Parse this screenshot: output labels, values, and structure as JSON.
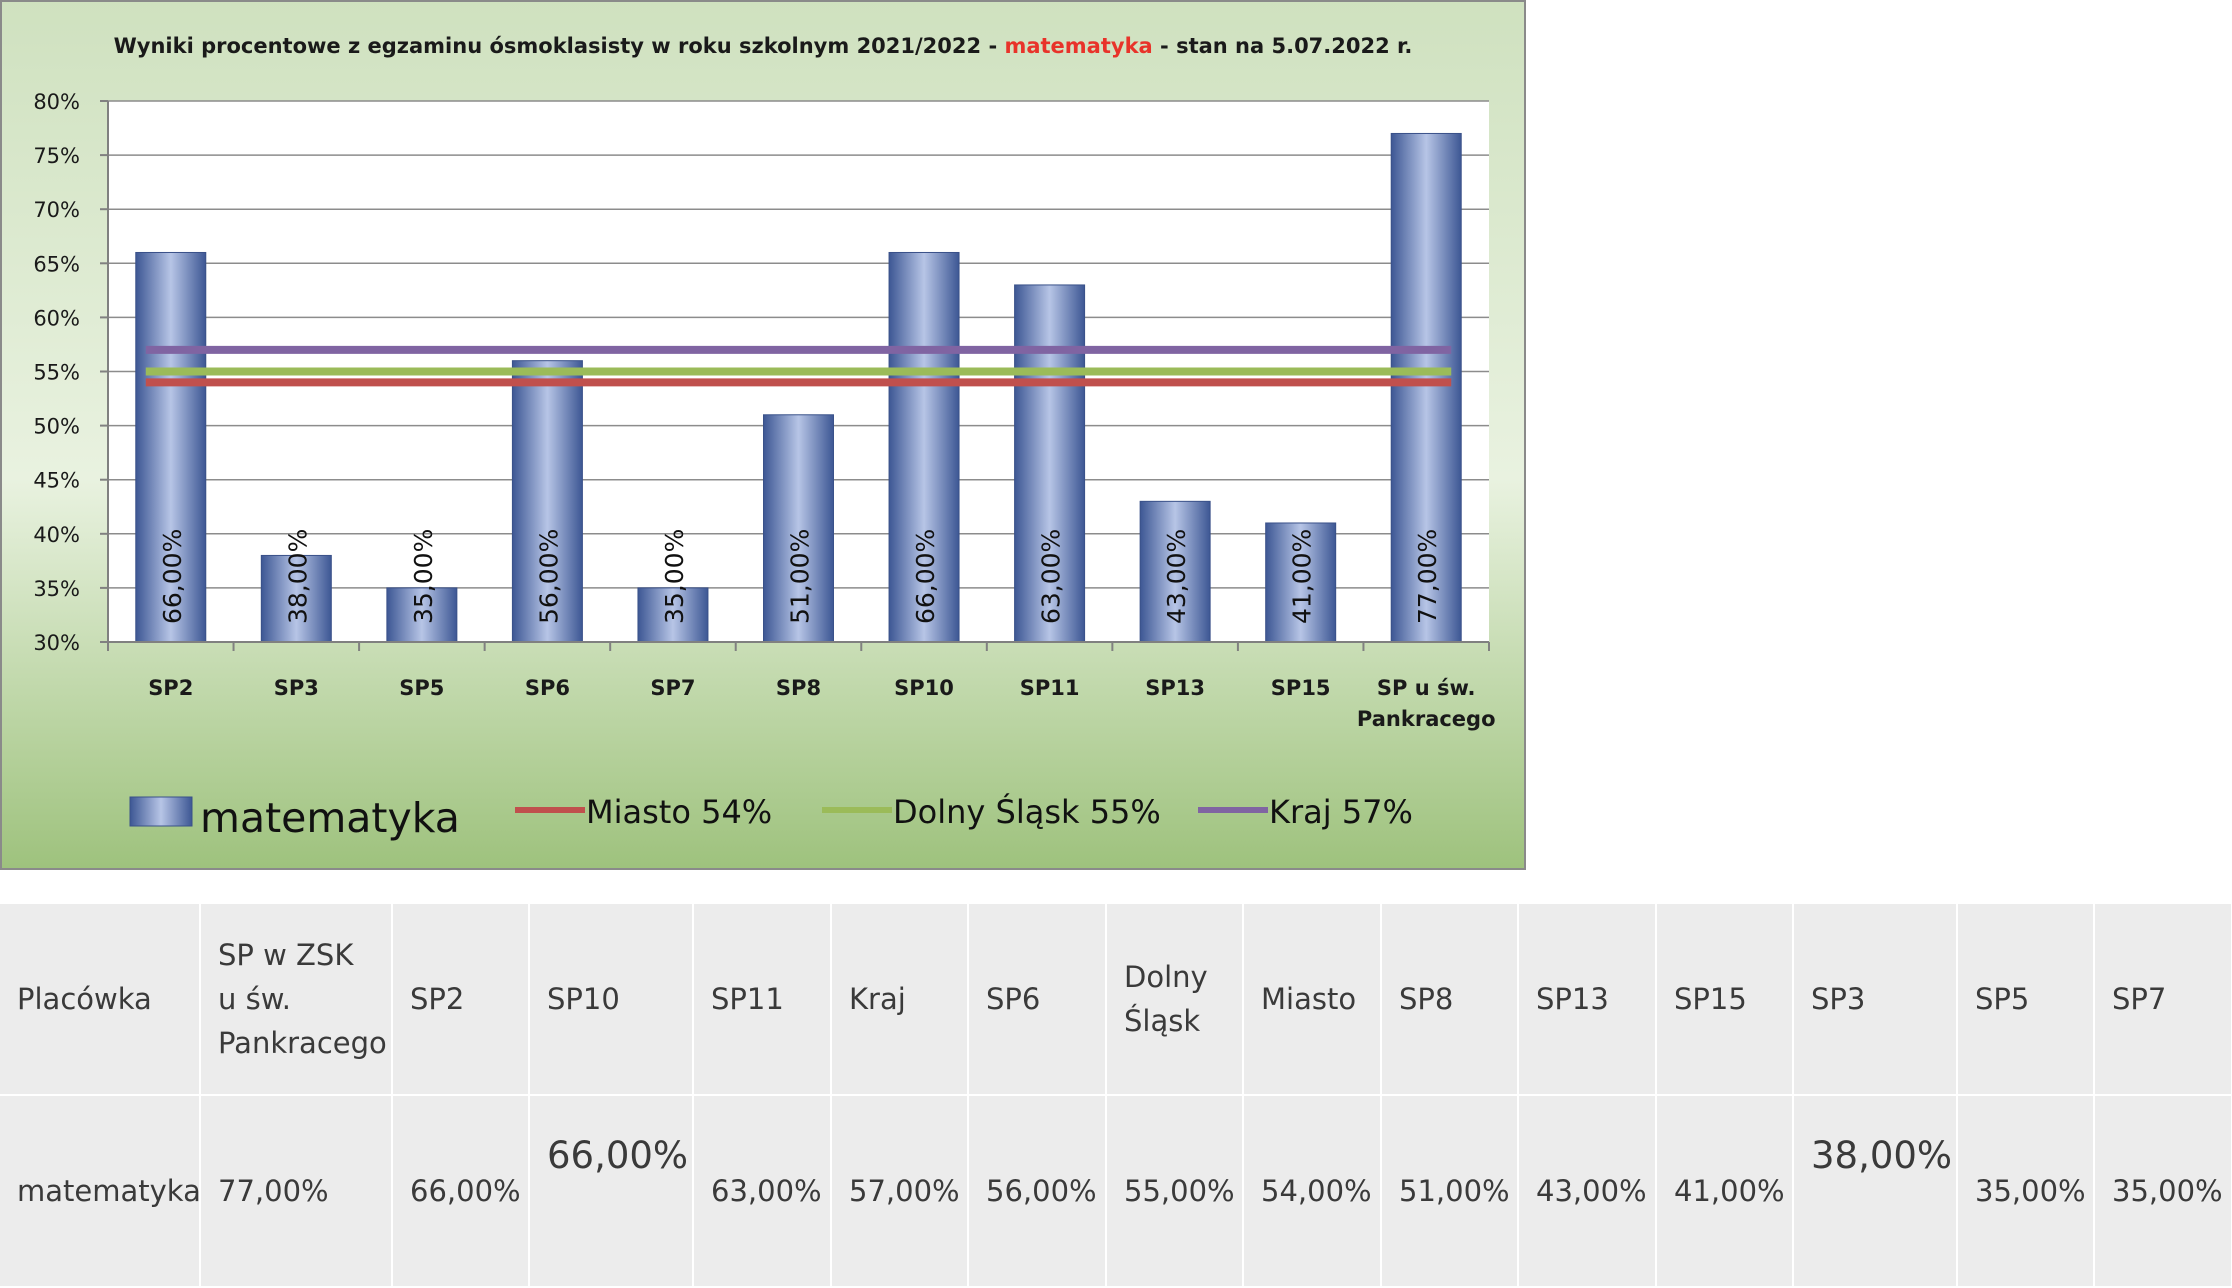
{
  "chart_data": {
    "type": "bar",
    "title_parts": [
      "Wyniki procentowe z egzaminu ósmoklasisty w roku szkolnym 2021/2022 - ",
      "matematyka",
      " - stan na 5.07.2022 r."
    ],
    "categories": [
      "SP2",
      "SP3",
      "SP5",
      "SP6",
      "SP7",
      "SP8",
      "SP10",
      "SP11",
      "SP13",
      "SP15",
      "SP u św. Pankracego"
    ],
    "category_lines": [
      [
        "SP2"
      ],
      [
        "SP3"
      ],
      [
        "SP5"
      ],
      [
        "SP6"
      ],
      [
        "SP7"
      ],
      [
        "SP8"
      ],
      [
        "SP10"
      ],
      [
        "SP11"
      ],
      [
        "SP13"
      ],
      [
        "SP15"
      ],
      [
        "SP u św.",
        "Pankracego"
      ]
    ],
    "series": [
      {
        "name": "matematyka",
        "values": [
          66,
          38,
          35,
          56,
          35,
          51,
          66,
          63,
          43,
          41,
          77
        ],
        "labels": [
          "66,00%",
          "38,00%",
          "35,00%",
          "56,00%",
          "35,00%",
          "51,00%",
          "66,00%",
          "63,00%",
          "43,00%",
          "41,00%",
          "77,00%"
        ]
      }
    ],
    "reference_lines": [
      {
        "name": "Miasto 54%",
        "value": 54,
        "color": "#c0504d"
      },
      {
        "name": "Dolny Śląsk 55%",
        "value": 55,
        "color": "#9bbb59"
      },
      {
        "name": "Kraj 57%",
        "value": 57,
        "color": "#8064a2"
      }
    ],
    "ylim": [
      30,
      80
    ],
    "yticks": [
      30,
      35,
      40,
      45,
      50,
      55,
      60,
      65,
      70,
      75,
      80
    ],
    "ytick_labels": [
      "30%",
      "35%",
      "40%",
      "45%",
      "50%",
      "55%",
      "60%",
      "65%",
      "70%",
      "75%",
      "80%"
    ],
    "grid": true,
    "legend_position": "bottom",
    "colors": {
      "bar": "#5b74b0",
      "title_highlight": "#e8332a",
      "background_top": "#d2e4c2",
      "background_bottom": "#9fc37f"
    }
  },
  "table": {
    "headers": [
      "Placówka",
      "SP w ZSK u św. Pankracego",
      "SP2",
      "SP10",
      "SP11",
      "Kraj",
      "SP6",
      "Dolny Śląsk",
      "Miasto",
      "SP8",
      "SP13",
      "SP15",
      "SP3",
      "SP5",
      "SP7"
    ],
    "values": [
      "matematyka",
      "77,00%",
      "66,00%",
      "66,00%",
      "63,00%",
      "57,00%",
      "56,00%",
      "55,00%",
      "54,00%",
      "51,00%",
      "43,00%",
      "41,00%",
      "38,00%",
      "35,00%",
      "35,00%"
    ]
  }
}
